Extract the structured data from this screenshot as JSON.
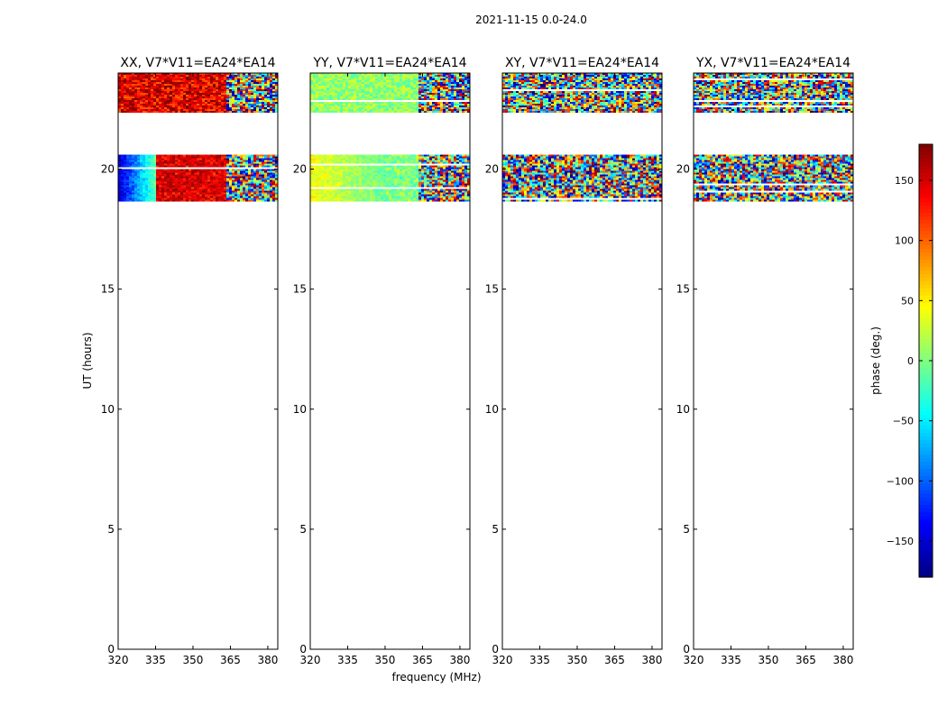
{
  "chart_data": {
    "type": "heatmap",
    "suptitle": "2021-11-15 0.0-24.0",
    "xlabel": "frequency (MHz)",
    "ylabel": "UT (hours)",
    "xlim": [
      320,
      384
    ],
    "ylim": [
      0,
      24
    ],
    "xticks": [
      320,
      335,
      350,
      365,
      380
    ],
    "xtick_labels": [
      "320",
      "335",
      "350",
      "365",
      "380"
    ],
    "yticks": [
      0,
      5,
      10,
      15,
      20
    ],
    "ytick_labels": [
      "0",
      "5",
      "10",
      "15",
      "20"
    ],
    "data_bands": [
      {
        "ut_from": 22.4,
        "ut_to": 24.0
      },
      {
        "ut_from": 18.7,
        "ut_to": 20.6
      }
    ],
    "panels": [
      {
        "title": "XX, V7*V11=EA24*EA14",
        "mode": "xx"
      },
      {
        "title": "YY, V7*V11=EA24*EA14",
        "mode": "yy"
      },
      {
        "title": "XY, V7*V11=EA24*EA14",
        "mode": "noise"
      },
      {
        "title": "YX, V7*V11=EA24*EA14",
        "mode": "noise"
      }
    ],
    "colorbar": {
      "label": "phase (deg.)",
      "cmap": "jet",
      "vmin": -180,
      "vmax": 180,
      "ticks": [
        150,
        100,
        50,
        0,
        -50,
        -100,
        -150
      ],
      "tick_labels": [
        "150",
        "100",
        "50",
        "0",
        "−50",
        "−100",
        "−150"
      ]
    }
  }
}
